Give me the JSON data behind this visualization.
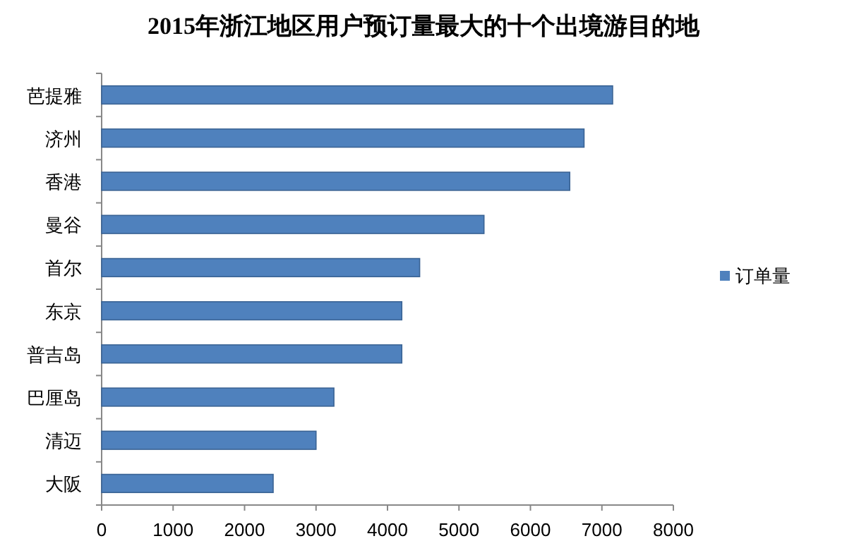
{
  "chart_data": {
    "type": "bar",
    "orientation": "horizontal",
    "title": "2015年浙江地区用户预订量最大的十个出境游目的地",
    "categories": [
      "芭提雅",
      "济州",
      "香港",
      "曼谷",
      "首尔",
      "东京",
      "普吉岛",
      "巴厘岛",
      "清迈",
      "大阪"
    ],
    "series": [
      {
        "name": "订单量",
        "color": "#4f81bd",
        "values": [
          7150,
          6750,
          6550,
          5350,
          4450,
          4200,
          4200,
          3250,
          3000,
          2400
        ]
      }
    ],
    "xlim": [
      0,
      8000
    ],
    "xticks": [
      0,
      1000,
      2000,
      3000,
      4000,
      5000,
      6000,
      7000,
      8000
    ],
    "grid": false,
    "legend": "right"
  }
}
